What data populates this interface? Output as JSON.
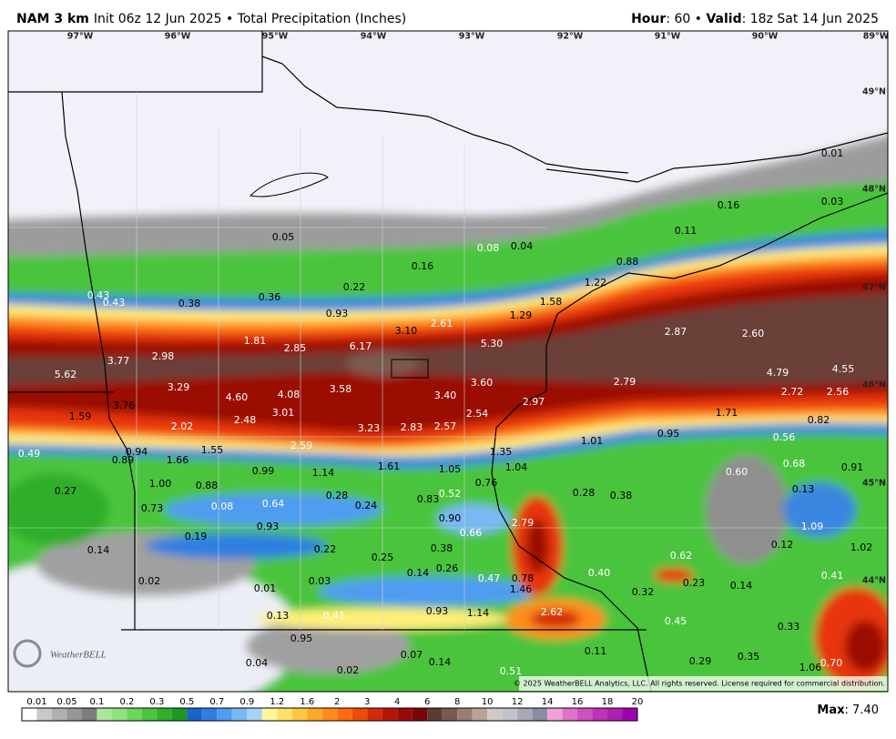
{
  "header": {
    "model": "NAM 3 km",
    "subtitle": "Init 06z 12 Jun 2025 • Total Precipitation (Inches)",
    "hour_label": "Hour",
    "hour_text": ": 60 • ",
    "valid_label": "Valid",
    "valid_text": ": 18z Sat 14 Jun 2025"
  },
  "longitudes": [
    "97°W",
    "96°W",
    "95°W",
    "94°W",
    "93°W",
    "92°W",
    "91°W",
    "90°W",
    "89°W"
  ],
  "latitudes": [
    "49°N",
    "48°N",
    "47°N",
    "46°N",
    "45°N",
    "44°N"
  ],
  "points": [
    "0.05",
    "0.16",
    "0.08",
    "0.04",
    "0.01",
    "0.03",
    "0.16",
    "0.11",
    "0.88",
    "1.22",
    "1.58",
    "0.43",
    "0.43",
    "0.38",
    "0.36",
    "0.22",
    "0.93",
    "2.61",
    "1.29",
    "3.10",
    "1.81",
    "2.85",
    "6.17",
    "5.30",
    "2.87",
    "2.60",
    "5.62",
    "3.77",
    "2.98",
    "4.79",
    "4.55",
    "3.29",
    "4.60",
    "4.08",
    "3.58",
    "3.60",
    "3.40",
    "2.97",
    "2.79",
    "2.72",
    "2.56",
    "1.59",
    "3.76",
    "2.02",
    "2.48",
    "3.01",
    "3.23",
    "2.83",
    "2.57",
    "2.54",
    "1.71",
    "0.82",
    "0.49",
    "0.94",
    "0.89",
    "1.66",
    "1.55",
    "2.59",
    "1.01",
    "0.95",
    "0.56",
    "1.35",
    "1.61",
    "1.05",
    "1.04",
    "0.99",
    "1.14",
    "0.60",
    "0.68",
    "0.91",
    "0.27",
    "1.00",
    "0.88",
    "0.28",
    "0.83",
    "0.52",
    "0.76",
    "0.28",
    "0.38",
    "0.13",
    "0.73",
    "0.08",
    "0.64",
    "0.24",
    "0.90",
    "0.66",
    "2.79",
    "1.09",
    "0.93",
    "0.19",
    "0.14",
    "0.22",
    "0.38",
    "0.25",
    "0.62",
    "0.12",
    "1.02",
    "0.02",
    "0.03",
    "0.14",
    "0.26",
    "0.47",
    "0.78",
    "1.46",
    "0.40",
    "0.23",
    "0.14",
    "0.41",
    "0.01",
    "0.32",
    "0.13",
    "0.41",
    "0.93",
    "1.14",
    "2.62",
    "0.45",
    "0.33",
    "0.95",
    "0.11",
    "0.07",
    "0.14",
    "0.04",
    "0.29",
    "0.35",
    "1.06",
    "0.70",
    "0.02",
    "0.51"
  ],
  "legend": {
    "labels": [
      "0.01",
      "0.05",
      "0.1",
      "0.2",
      "0.3",
      "0.5",
      "0.7",
      "0.9",
      "1.2",
      "1.6",
      "2",
      "3",
      "4",
      "6",
      "8",
      "10",
      "12",
      "14",
      "16",
      "18",
      "20"
    ],
    "colors": [
      "#ffffff",
      "#c8c8c8",
      "#b0b0b0",
      "#969696",
      "#7d7d7d",
      "#a8e89a",
      "#8fe07f",
      "#6fd45e",
      "#4cc43d",
      "#2fae2a",
      "#1c9a1f",
      "#1b63c9",
      "#2f7fe0",
      "#4f9cf0",
      "#7ab8f5",
      "#a6d2f8",
      "#fff59a",
      "#ffe066",
      "#ffc640",
      "#ffa826",
      "#ff8c1a",
      "#ff6a10",
      "#f04a0a",
      "#d42a08",
      "#b81406",
      "#9a0a06",
      "#7c0606",
      "#5e3a32",
      "#7a5a50",
      "#9a7d74",
      "#b8a29a",
      "#d2c8c6",
      "#c2c2cc",
      "#a8a8b8",
      "#8c8ca0",
      "#f0a0d8",
      "#e070c8",
      "#d050c0",
      "#c030b8",
      "#b020b0",
      "#a000b0"
    ]
  },
  "max_label": "Max",
  "max_text": ": 7.40",
  "logo": "WeatherBELL",
  "copyright": "© 2025 WeatherBELL Analytics, LLC. All rights reserved. License required for commercial distribution."
}
